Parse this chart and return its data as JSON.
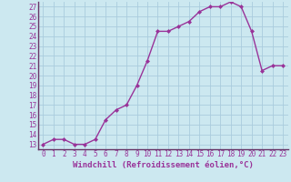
{
  "x": [
    0,
    1,
    2,
    3,
    4,
    5,
    6,
    7,
    8,
    9,
    10,
    11,
    12,
    13,
    14,
    15,
    16,
    17,
    18,
    19,
    20,
    21,
    22,
    23
  ],
  "y": [
    13,
    13.5,
    13.5,
    13,
    13,
    13.5,
    15.5,
    16.5,
    17,
    19,
    21.5,
    24.5,
    24.5,
    25,
    25.5,
    26.5,
    27,
    27,
    27.5,
    27,
    24.5,
    20.5,
    21,
    21
  ],
  "line_color": "#993399",
  "marker": "D",
  "marker_size": 2,
  "bg_color": "#cce8f0",
  "grid_color": "#aaccdd",
  "xlabel": "Windchill (Refroidissement éolien,°C)",
  "xlabel_fontsize": 6.5,
  "tick_fontsize": 5.5,
  "ylim_min": 12.5,
  "ylim_max": 27.5,
  "xlim_min": -0.5,
  "xlim_max": 23.5,
  "yticks": [
    13,
    14,
    15,
    16,
    17,
    18,
    19,
    20,
    21,
    22,
    23,
    24,
    25,
    26,
    27
  ],
  "xticks": [
    0,
    1,
    2,
    3,
    4,
    5,
    6,
    7,
    8,
    9,
    10,
    11,
    12,
    13,
    14,
    15,
    16,
    17,
    18,
    19,
    20,
    21,
    22,
    23
  ],
  "spine_color": "#663366",
  "linewidth": 1.0
}
